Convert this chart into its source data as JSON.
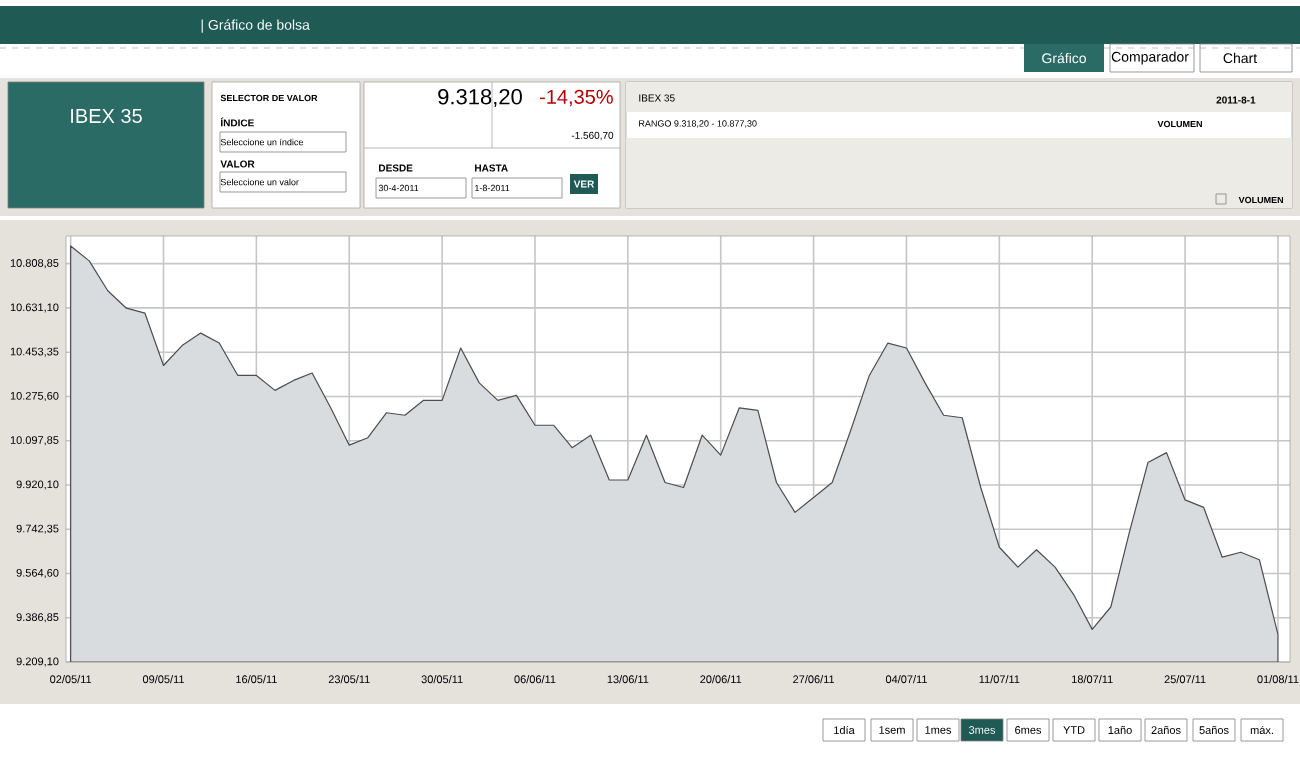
{
  "chart_data": {
    "type": "area",
    "title": "IBEX 35",
    "categories": [
      "02/05/11",
      null,
      null,
      null,
      null,
      "09/05/11",
      null,
      null,
      null,
      null,
      "16/05/11",
      null,
      null,
      null,
      null,
      "23/05/11",
      null,
      null,
      null,
      null,
      "30/05/11",
      null,
      null,
      null,
      null,
      "06/06/11",
      null,
      null,
      null,
      null,
      "13/06/11",
      null,
      null,
      null,
      null,
      "20/06/11",
      null,
      null,
      null,
      null,
      "27/06/11",
      null,
      null,
      null,
      null,
      "04/07/11",
      null,
      null,
      null,
      null,
      "11/07/11",
      null,
      null,
      null,
      null,
      "18/07/11",
      null,
      null,
      null,
      null,
      "25/07/11",
      null,
      null,
      null,
      null,
      "01/08/11"
    ],
    "values": [
      10880,
      10820,
      10700,
      10630,
      10610,
      10400,
      10480,
      10530,
      10490,
      10360,
      10360,
      10300,
      10340,
      10370,
      10230,
      10080,
      10110,
      10210,
      10200,
      10260,
      10260,
      10470,
      10330,
      10260,
      10280,
      10160,
      10160,
      10070,
      10120,
      9940,
      9940,
      10120,
      9930,
      9910,
      10120,
      10040,
      10230,
      10220,
      9930,
      9810,
      9870,
      9930,
      10140,
      10360,
      10490,
      10470,
      10330,
      10200,
      10190,
      9910,
      9670,
      9590,
      9660,
      9590,
      9480,
      9340,
      9430,
      9730,
      10010,
      10050,
      9860,
      9830,
      9630,
      9650,
      9620,
      9320
    ],
    "color": "#d8dcdf",
    "ylim": [
      9209.1,
      10920
    ],
    "yticks": [
      {
        "value": 9209.1,
        "label": "9.209,10"
      },
      {
        "value": 9386.85,
        "label": "9.386,85"
      },
      {
        "value": 9564.6,
        "label": "9.564,60"
      },
      {
        "value": 9742.35,
        "label": "9.742,35"
      },
      {
        "value": 9920.1,
        "label": "9.920,10"
      },
      {
        "value": 10097.85,
        "label": "10.097,85"
      },
      {
        "value": 10275.6,
        "label": "10.275,60"
      },
      {
        "value": 10453.35,
        "label": "10.453,35"
      },
      {
        "value": 10631.1,
        "label": "10.631,10"
      },
      {
        "value": 10808.85,
        "label": "10.808,85"
      }
    ],
    "grid": true,
    "annotations": [
      "| Gráfico de bolsa",
      "Gráfico",
      "Comparador",
      "Chart",
      "SELECTOR DE VALOR",
      "ÍNDICE",
      "Seleccione un índice",
      "VALOR",
      "Seleccione un valor",
      "9.318,20",
      "-14,35%",
      "-1.560,70",
      "DESDE",
      "30-4-2011",
      "HASTA",
      "1-8-2011",
      "VER",
      "IBEX 35",
      "2011-8-1",
      "RANGO 9.318,20 - 10.877,30",
      "VOLUMEN",
      "VOLUMEN",
      "1día",
      "1sem",
      "1mes",
      "3mes",
      "6mes",
      "YTD",
      "1año",
      "2años",
      "5años",
      "máx."
    ]
  }
}
